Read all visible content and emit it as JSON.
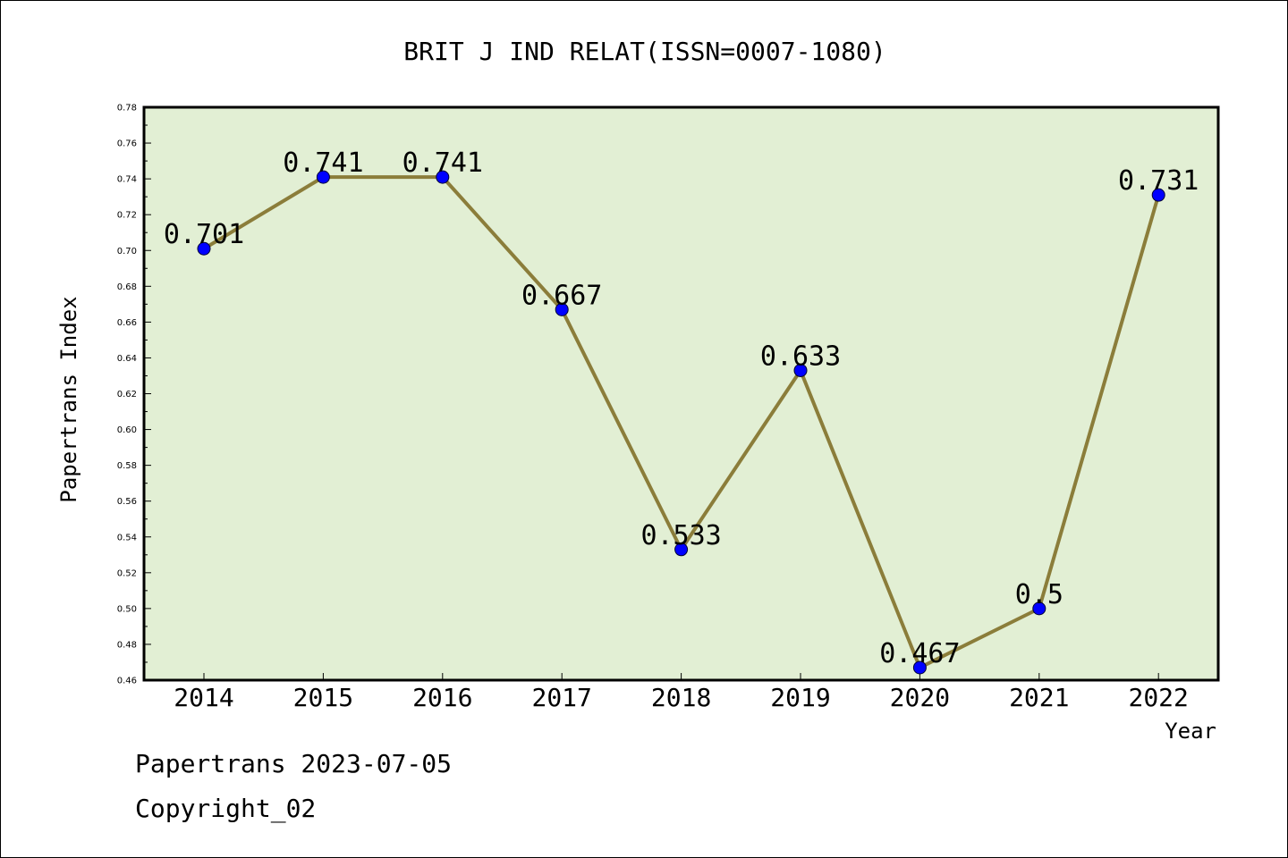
{
  "chart_data": {
    "type": "line",
    "title": "BRIT J IND RELAT(ISSN=0007-1080)",
    "xlabel": "Year",
    "ylabel": "Papertrans Index",
    "categories": [
      "2014",
      "2015",
      "2016",
      "2017",
      "2018",
      "2019",
      "2020",
      "2021",
      "2022"
    ],
    "values": [
      0.701,
      0.741,
      0.741,
      0.667,
      0.533,
      0.633,
      0.467,
      0.5,
      0.731
    ],
    "value_labels": [
      "0.701",
      "0.741",
      "0.741",
      "0.667",
      "0.533",
      "0.633",
      "0.467",
      "0.5",
      "0.731"
    ],
    "ylim": [
      0.46,
      0.78
    ],
    "yticks": [
      "0.46",
      "0.48",
      "0.50",
      "0.52",
      "0.54",
      "0.56",
      "0.58",
      "0.60",
      "0.62",
      "0.64",
      "0.66",
      "0.68",
      "0.70",
      "0.72",
      "0.74",
      "0.76",
      "0.78"
    ],
    "grid": false,
    "legend": "none",
    "colors": {
      "plot_background": "#e2efd4",
      "line": "#8b7d3a",
      "marker": "#0000ff"
    }
  },
  "footer": {
    "line1": "Papertrans 2023-07-05",
    "line2": "Copyright_02"
  }
}
